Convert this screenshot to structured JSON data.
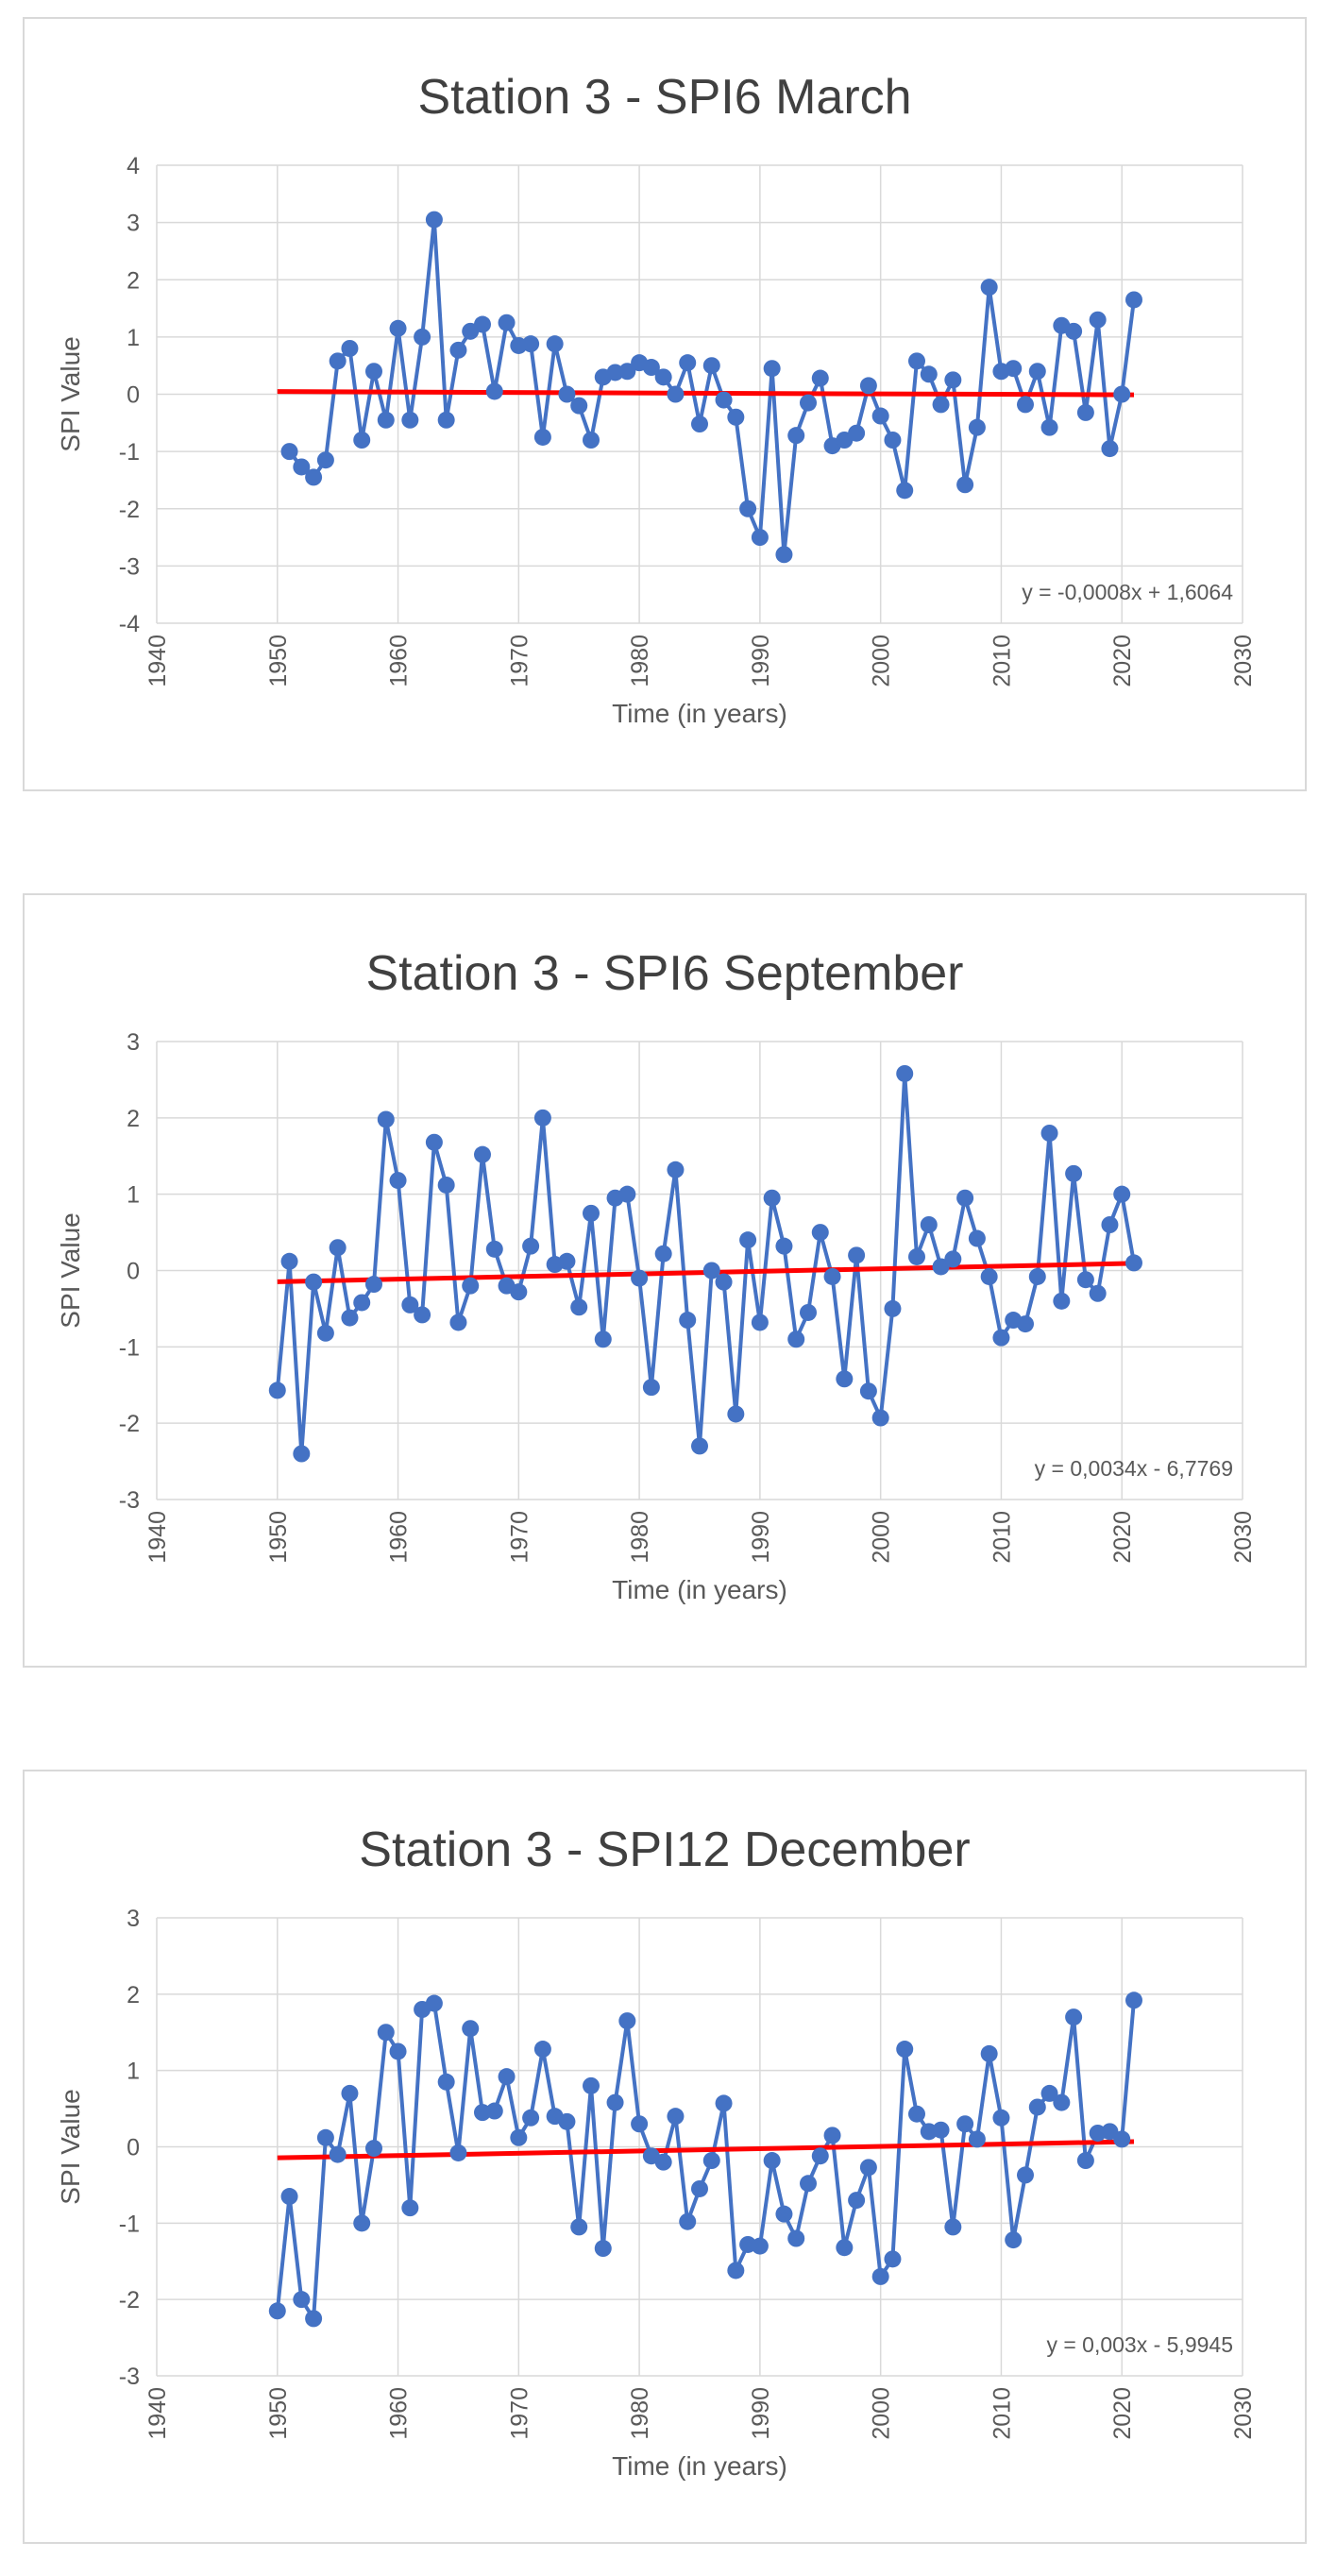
{
  "colors": {
    "series": "#4472c4",
    "trend": "#ff0000",
    "grid": "#d9d9d9",
    "text": "#595959",
    "title": "#404040"
  },
  "chart_data": [
    {
      "type": "scatter",
      "title": "Station 3 - SPI6 March",
      "xlabel": "Time (in years)",
      "ylabel": "SPI Value",
      "xlim": [
        1940,
        2030
      ],
      "ylim": [
        -4,
        4
      ],
      "xticks": [
        1940,
        1950,
        1960,
        1970,
        1980,
        1990,
        2000,
        2010,
        2020,
        2030
      ],
      "yticks": [
        -4,
        -3,
        -2,
        -1,
        0,
        1,
        2,
        3,
        4
      ],
      "grid": true,
      "series": [
        {
          "name": "SPI6 March",
          "x": [
            1951,
            1952,
            1953,
            1954,
            1955,
            1956,
            1957,
            1958,
            1959,
            1960,
            1961,
            1962,
            1963,
            1964,
            1965,
            1966,
            1967,
            1968,
            1969,
            1970,
            1971,
            1972,
            1973,
            1974,
            1975,
            1976,
            1977,
            1978,
            1979,
            1980,
            1981,
            1982,
            1983,
            1984,
            1985,
            1986,
            1987,
            1988,
            1989,
            1990,
            1991,
            1992,
            1993,
            1994,
            1995,
            1996,
            1997,
            1998,
            1999,
            2000,
            2001,
            2002,
            2003,
            2004,
            2005,
            2006,
            2007,
            2008,
            2009,
            2010,
            2011,
            2012,
            2013,
            2014,
            2015,
            2016,
            2017,
            2018,
            2019,
            2020,
            2021
          ],
          "y": [
            -1.0,
            -1.27,
            -1.45,
            -1.15,
            0.58,
            0.8,
            -0.8,
            0.4,
            -0.45,
            1.15,
            -0.45,
            1.0,
            3.05,
            -0.45,
            0.77,
            1.1,
            1.22,
            0.05,
            1.25,
            0.85,
            0.88,
            -0.75,
            0.88,
            0.0,
            -0.2,
            -0.8,
            0.3,
            0.38,
            0.4,
            0.55,
            0.47,
            0.3,
            0.0,
            0.55,
            -0.52,
            0.5,
            -0.1,
            -0.4,
            -2.0,
            -2.5,
            0.45,
            -2.8,
            -0.72,
            -0.15,
            0.28,
            -0.9,
            -0.8,
            -0.68,
            0.15,
            -0.38,
            -0.8,
            -1.68,
            0.58,
            0.35,
            -0.18,
            0.25,
            -1.58,
            -0.58,
            1.87,
            0.4,
            0.45,
            -0.18,
            0.4,
            -0.58,
            1.2,
            1.1,
            -0.32,
            1.3,
            -0.95,
            0.0,
            1.65
          ]
        }
      ],
      "trendline": {
        "slope": -0.0008,
        "intercept": 1.6064,
        "x_range": [
          1950,
          2021
        ],
        "label": "y = -0,0008x + 1,6064"
      }
    },
    {
      "type": "scatter",
      "title": "Station 3 - SPI6 September",
      "xlabel": "Time (in years)",
      "ylabel": "SPI Value",
      "xlim": [
        1940,
        2030
      ],
      "ylim": [
        -3,
        3
      ],
      "xticks": [
        1940,
        1950,
        1960,
        1970,
        1980,
        1990,
        2000,
        2010,
        2020,
        2030
      ],
      "yticks": [
        -3,
        -2,
        -1,
        0,
        1,
        2,
        3
      ],
      "grid": true,
      "series": [
        {
          "name": "SPI6 September",
          "x": [
            1950,
            1951,
            1952,
            1953,
            1954,
            1955,
            1956,
            1957,
            1958,
            1959,
            1960,
            1961,
            1962,
            1963,
            1964,
            1965,
            1966,
            1967,
            1968,
            1969,
            1970,
            1971,
            1972,
            1973,
            1974,
            1975,
            1976,
            1977,
            1978,
            1979,
            1980,
            1981,
            1982,
            1983,
            1984,
            1985,
            1986,
            1987,
            1988,
            1989,
            1990,
            1991,
            1992,
            1993,
            1994,
            1995,
            1996,
            1997,
            1998,
            1999,
            2000,
            2001,
            2002,
            2003,
            2004,
            2005,
            2006,
            2007,
            2008,
            2009,
            2010,
            2011,
            2012,
            2013,
            2014,
            2015,
            2016,
            2017,
            2018,
            2019,
            2020,
            2021
          ],
          "y": [
            -1.57,
            0.12,
            -2.4,
            -0.15,
            -0.82,
            0.3,
            -0.62,
            -0.42,
            -0.18,
            1.98,
            1.18,
            -0.45,
            -0.58,
            1.68,
            1.12,
            -0.68,
            -0.2,
            1.52,
            0.28,
            -0.2,
            -0.28,
            0.32,
            2.0,
            0.08,
            0.12,
            -0.48,
            0.75,
            -0.9,
            0.95,
            1.0,
            -0.1,
            -1.53,
            0.22,
            1.32,
            -0.65,
            -2.3,
            0.0,
            -0.15,
            -1.88,
            0.4,
            -0.68,
            0.95,
            0.32,
            -0.9,
            -0.55,
            0.5,
            -0.08,
            -1.42,
            0.2,
            -1.58,
            -1.93,
            -0.5,
            2.58,
            0.18,
            0.6,
            0.05,
            0.15,
            0.95,
            0.42,
            -0.08,
            -0.88,
            -0.65,
            -0.7,
            -0.08,
            1.8,
            -0.4,
            1.27,
            -0.12,
            -0.3,
            0.6,
            1.0,
            0.1
          ]
        }
      ],
      "trendline": {
        "slope": 0.0034,
        "intercept": -6.7769,
        "x_range": [
          1950,
          2021
        ],
        "label": "y = 0,0034x - 6,7769"
      }
    },
    {
      "type": "scatter",
      "title": "Station 3 - SPI12 December",
      "xlabel": "Time (in years)",
      "ylabel": "SPI Value",
      "xlim": [
        1940,
        2030
      ],
      "ylim": [
        -3,
        3
      ],
      "xticks": [
        1940,
        1950,
        1960,
        1970,
        1980,
        1990,
        2000,
        2010,
        2020,
        2030
      ],
      "yticks": [
        -3,
        -2,
        -1,
        0,
        1,
        2,
        3
      ],
      "grid": true,
      "series": [
        {
          "name": "SPI12 December",
          "x": [
            1950,
            1951,
            1952,
            1953,
            1954,
            1955,
            1956,
            1957,
            1958,
            1959,
            1960,
            1961,
            1962,
            1963,
            1964,
            1965,
            1966,
            1967,
            1968,
            1969,
            1970,
            1971,
            1972,
            1973,
            1974,
            1975,
            1976,
            1977,
            1978,
            1979,
            1980,
            1981,
            1982,
            1983,
            1984,
            1985,
            1986,
            1987,
            1988,
            1989,
            1990,
            1991,
            1992,
            1993,
            1994,
            1995,
            1996,
            1997,
            1998,
            1999,
            2000,
            2001,
            2002,
            2003,
            2004,
            2005,
            2006,
            2007,
            2008,
            2009,
            2010,
            2011,
            2012,
            2013,
            2014,
            2015,
            2016,
            2017,
            2018,
            2019,
            2020,
            2021
          ],
          "y": [
            -2.15,
            -0.65,
            -2.0,
            -2.25,
            0.12,
            -0.1,
            0.7,
            -1.0,
            -0.02,
            1.5,
            1.25,
            -0.8,
            1.8,
            1.88,
            0.85,
            -0.08,
            1.55,
            0.45,
            0.47,
            0.92,
            0.12,
            0.38,
            1.28,
            0.4,
            0.33,
            -1.05,
            0.8,
            -1.33,
            0.58,
            1.65,
            0.3,
            -0.12,
            -0.2,
            0.4,
            -0.98,
            -0.55,
            -0.18,
            0.57,
            -1.62,
            -1.28,
            -1.3,
            -0.18,
            -0.88,
            -1.2,
            -0.48,
            -0.12,
            0.15,
            -1.32,
            -0.7,
            -0.27,
            -1.7,
            -1.47,
            1.28,
            0.43,
            0.2,
            0.22,
            -1.05,
            0.3,
            0.1,
            1.22,
            0.38,
            -1.22,
            -0.37,
            0.52,
            0.7,
            0.58,
            1.7,
            -0.18,
            0.18,
            0.2,
            0.1,
            1.92
          ]
        }
      ],
      "trendline": {
        "slope": 0.003,
        "intercept": -5.9945,
        "x_range": [
          1950,
          2021
        ],
        "label": "y = 0,003x - 5,9945"
      }
    }
  ]
}
